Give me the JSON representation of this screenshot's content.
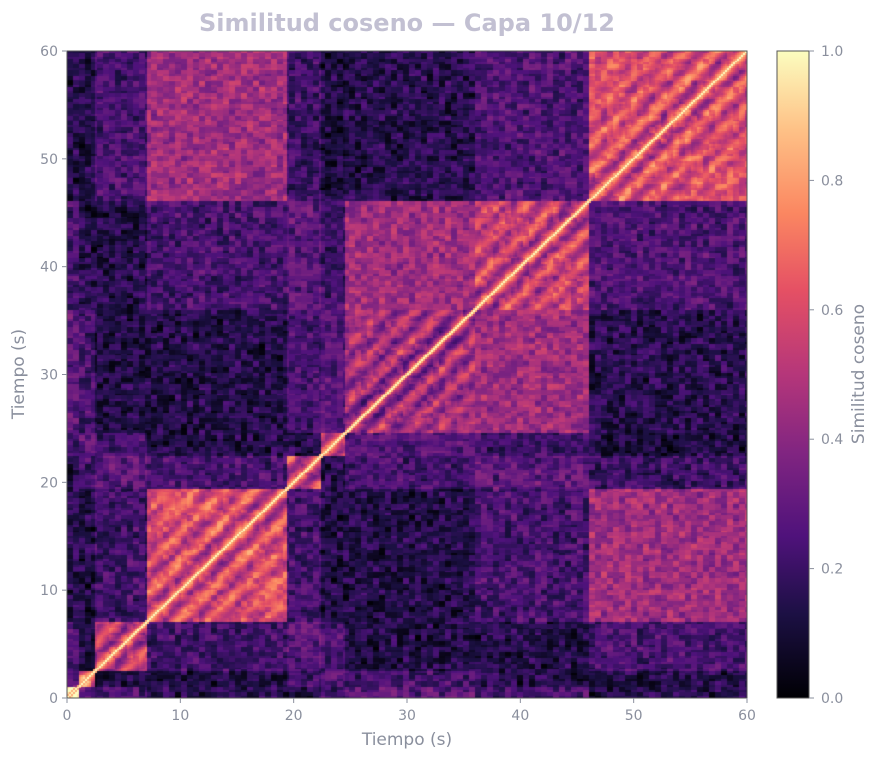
{
  "chart_data": {
    "type": "heatmap",
    "title": "Similitud coseno — Capa 10/12",
    "xlabel": "Tiempo (s)",
    "ylabel": "Tiempo (s)",
    "xlim": [
      0,
      60
    ],
    "ylim": [
      0,
      60
    ],
    "xticks": [
      0,
      10,
      20,
      30,
      40,
      50,
      60
    ],
    "yticks": [
      0,
      10,
      20,
      30,
      40,
      50,
      60
    ],
    "colormap": "magma",
    "colorbar": {
      "label": "Similitud coseno",
      "range": [
        0.0,
        1.0
      ],
      "ticks": [
        "0.0",
        "0.2",
        "0.4",
        "0.6",
        "0.8",
        "1.0"
      ]
    },
    "segments": [
      {
        "start": 0,
        "end": 1.0,
        "self_similarity": 0.95
      },
      {
        "start": 1.0,
        "end": 2.5,
        "self_similarity": 0.7
      },
      {
        "start": 2.5,
        "end": 7.0,
        "self_similarity": 0.55
      },
      {
        "start": 7.0,
        "end": 19.5,
        "self_similarity": 0.6
      },
      {
        "start": 19.5,
        "end": 22.5,
        "self_similarity": 0.55
      },
      {
        "start": 22.5,
        "end": 24.5,
        "self_similarity": 0.6
      },
      {
        "start": 24.5,
        "end": 36.0,
        "self_similarity": 0.45
      },
      {
        "start": 36.0,
        "end": 46.0,
        "self_similarity": 0.55
      },
      {
        "start": 46.0,
        "end": 60.0,
        "self_similarity": 0.6
      }
    ],
    "diagonal_value": 1.0
  }
}
